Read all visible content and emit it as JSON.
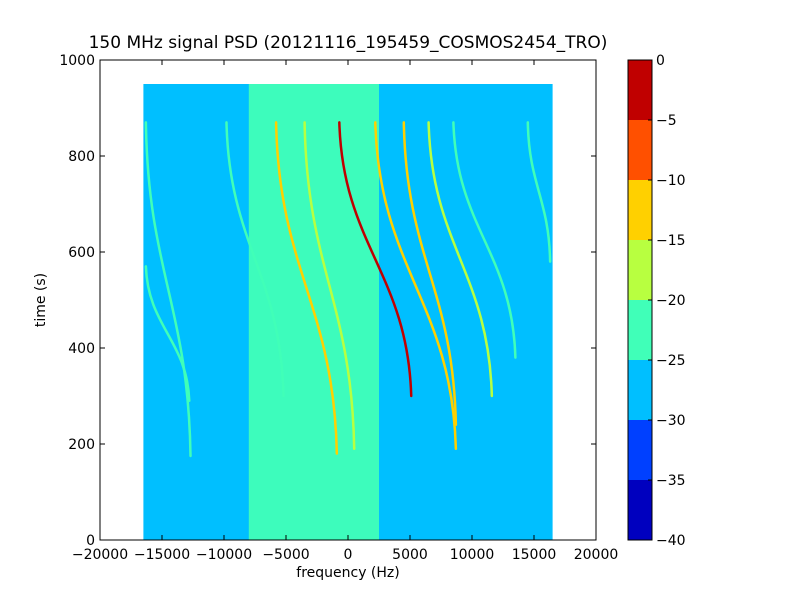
{
  "chart_data": {
    "type": "heatmap",
    "title": "150 MHz signal PSD (20121116_195459_COSMOS2454_TRO)",
    "xlabel": "frequency (Hz)",
    "ylabel": "time (s)",
    "xlim": [
      -20000,
      20000
    ],
    "ylim": [
      0,
      1000
    ],
    "x_ticks": [
      "−20000",
      "−15000",
      "−10000",
      "−5000",
      "0",
      "5000",
      "10000",
      "15000",
      "20000"
    ],
    "y_ticks": [
      "0",
      "200",
      "400",
      "600",
      "800",
      "1000"
    ],
    "data_extent": {
      "x": [
        -16500,
        16500
      ],
      "y": [
        0,
        950
      ]
    },
    "background_level_db": -28,
    "central_band": {
      "x_range": [
        -8000,
        2500
      ],
      "level_db": -22
    },
    "traces": [
      {
        "x_top": -16300,
        "x_bottom": -12700,
        "y_top": 870,
        "y_bottom": 175,
        "level_db": -22
      },
      {
        "x_top": -16300,
        "x_bottom": -12800,
        "y_top": 570,
        "y_bottom": 290,
        "level_db": -22
      },
      {
        "x_top": -9800,
        "x_bottom": -5200,
        "y_top": 870,
        "y_bottom": 300,
        "level_db": -22
      },
      {
        "x_top": -5800,
        "x_bottom": -900,
        "y_top": 870,
        "y_bottom": 180,
        "level_db": -12
      },
      {
        "x_top": -3500,
        "x_bottom": 500,
        "y_top": 870,
        "y_bottom": 190,
        "level_db": -16
      },
      {
        "x_top": -700,
        "x_bottom": 5100,
        "y_top": 870,
        "y_bottom": 300,
        "level_db": -5
      },
      {
        "x_top": 2200,
        "x_bottom": 8700,
        "y_top": 870,
        "y_bottom": 190,
        "level_db": -14
      },
      {
        "x_top": 4500,
        "x_bottom": 8700,
        "y_top": 870,
        "y_bottom": 240,
        "level_db": -14
      },
      {
        "x_top": 6500,
        "x_bottom": 11600,
        "y_top": 870,
        "y_bottom": 300,
        "level_db": -20
      },
      {
        "x_top": 8500,
        "x_bottom": 13500,
        "y_top": 870,
        "y_bottom": 380,
        "level_db": -22
      },
      {
        "x_top": 14500,
        "x_bottom": 16300,
        "y_top": 870,
        "y_bottom": 580,
        "level_db": -22
      }
    ],
    "colorbar": {
      "range": [
        -40,
        0
      ],
      "ticks": [
        "0",
        "−5",
        "−10",
        "−15",
        "−20",
        "−25",
        "−30",
        "−35",
        "−40"
      ],
      "levels": [
        {
          "from": -40,
          "to": -35,
          "color": "#0000bf"
        },
        {
          "from": -35,
          "to": -30,
          "color": "#0040ff"
        },
        {
          "from": -30,
          "to": -25,
          "color": "#00bfff"
        },
        {
          "from": -25,
          "to": -20,
          "color": "#40ffb8"
        },
        {
          "from": -20,
          "to": -15,
          "color": "#b8ff40"
        },
        {
          "from": -15,
          "to": -10,
          "color": "#ffd000"
        },
        {
          "from": -10,
          "to": -5,
          "color": "#ff5000"
        },
        {
          "from": -5,
          "to": 0,
          "color": "#c00000"
        }
      ]
    },
    "grid": false,
    "legend": "none"
  }
}
